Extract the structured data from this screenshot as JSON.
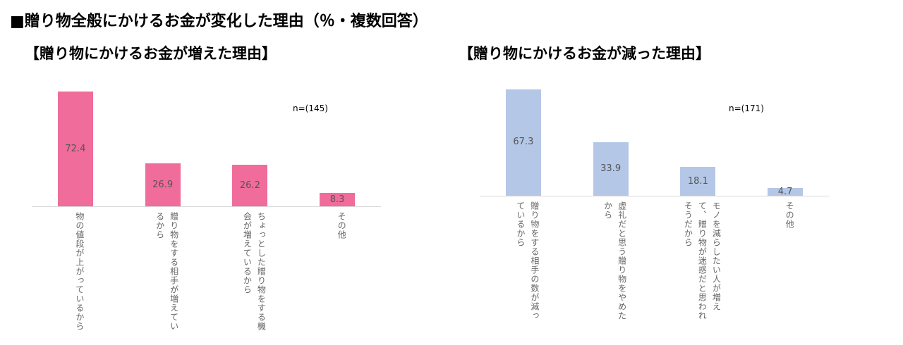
{
  "title": "■贈り物全般にかけるお金が変化した理由（％・複数回答）",
  "chart_data": [
    {
      "type": "bar",
      "title": "【贈り物にかけるお金が増えた理由】",
      "annotation": "n=(145)",
      "categories": [
        "物の値段が上がっているから",
        "贈り物をする相手が増えているから",
        "ちょっとした贈り物をする機会が増えているから",
        "その他"
      ],
      "values": [
        72.4,
        26.9,
        26.2,
        8.3
      ],
      "color": "#f06c9b",
      "ylim": [
        0,
        80
      ]
    },
    {
      "type": "bar",
      "title": "【贈り物にかけるお金が減った理由】",
      "annotation": "n=(171)",
      "categories": [
        "贈り物をする相手の数が減っているから",
        "虚礼だと思う贈り物をやめたから",
        "モノを減らしたい人が増えて、贈り物が迷惑だと思われそうだから",
        "その他"
      ],
      "values": [
        67.3,
        33.9,
        18.1,
        4.7
      ],
      "color": "#b4c7e7",
      "ylim": [
        0,
        80
      ]
    }
  ]
}
